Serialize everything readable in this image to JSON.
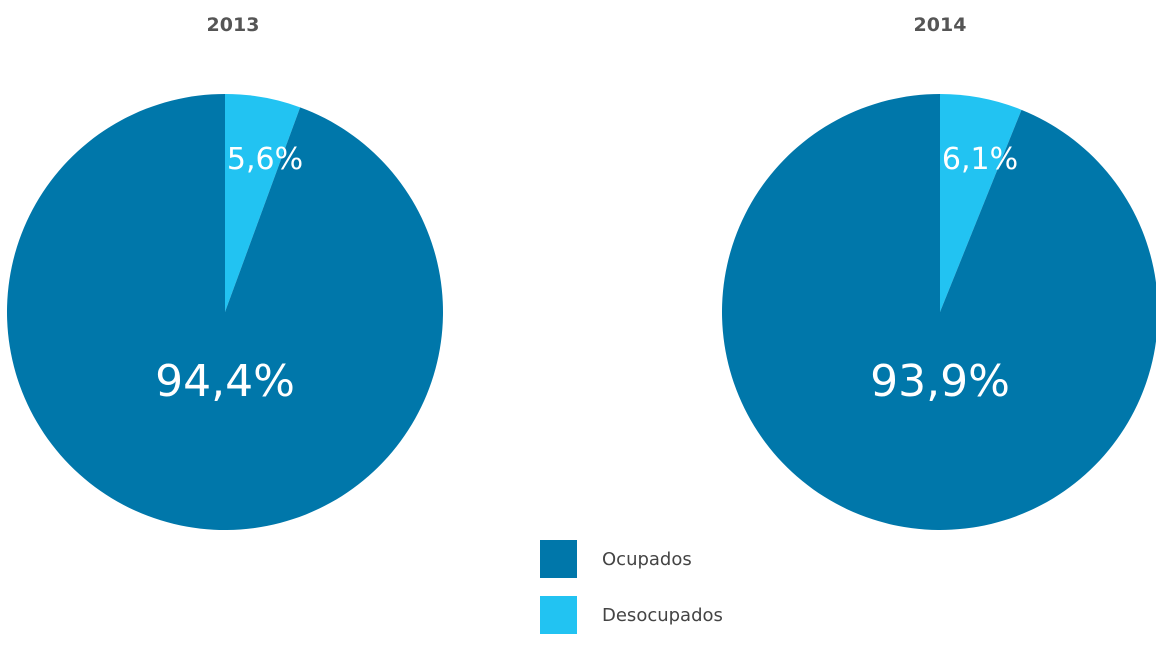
{
  "chart_data": [
    {
      "type": "pie",
      "title": "2013",
      "categories": [
        "Ocupados",
        "Desocupados"
      ],
      "values": [
        94.4,
        5.6
      ],
      "labels": [
        "94,4%",
        "5,6%"
      ],
      "colors": [
        "#0077aa",
        "#22c3f2"
      ]
    },
    {
      "type": "pie",
      "title": "2014",
      "categories": [
        "Ocupados",
        "Desocupados"
      ],
      "values": [
        93.9,
        6.1
      ],
      "labels": [
        "93,9%",
        "6,1%"
      ],
      "colors": [
        "#0077aa",
        "#22c3f2"
      ]
    }
  ],
  "legend": [
    {
      "label": "Ocupados",
      "color": "#0077aa"
    },
    {
      "label": "Desocupados",
      "color": "#22c3f2"
    }
  ]
}
